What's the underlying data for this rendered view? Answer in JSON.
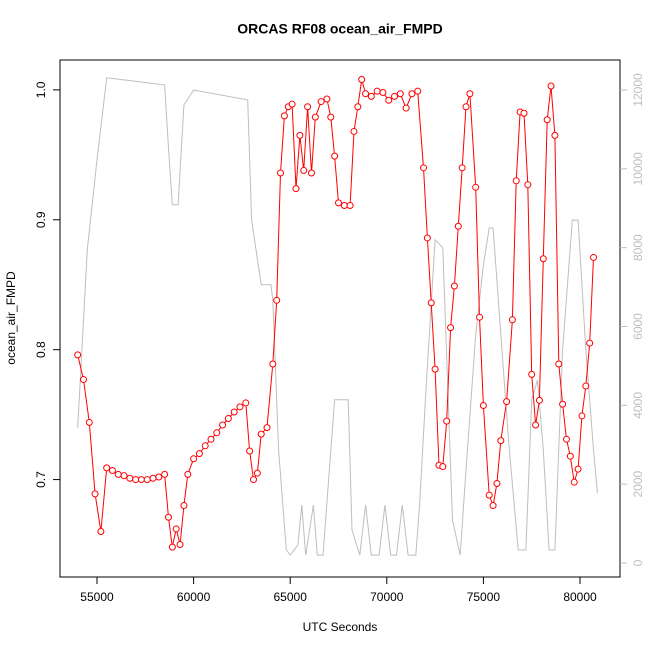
{
  "chart_data": {
    "type": "line",
    "title": "ORCAS RF08 ocean_air_FMPD",
    "x_label": "UTC Seconds",
    "y_label": "ocean_air_FMPD",
    "xlim": [
      53085,
      82070
    ],
    "xticks": [
      55000,
      60000,
      65000,
      70000,
      75000,
      80000
    ],
    "ylim": [
      0.625,
      1.023
    ],
    "yticks": [
      0.7,
      0.8,
      0.9,
      {
        "value": 1.0,
        "label": "1.0"
      }
    ],
    "y2lim": [
      -355,
      12761
    ],
    "y2ticks": [
      0,
      2000,
      4000,
      6000,
      8000,
      10000,
      12000
    ],
    "y2color": "#bebebe",
    "series": [
      {
        "color": "#bebebe",
        "axis": "y2",
        "markers": false,
        "x": [
          54000,
          54500,
          55000,
          55500,
          58500,
          58700,
          58900,
          59200,
          59500,
          60000,
          62800,
          63000,
          63500,
          64000,
          64100,
          64400,
          64800,
          65000,
          65400,
          65600,
          65800,
          66200,
          66400,
          66700,
          67300,
          68000,
          68200,
          68600,
          68900,
          69200,
          69600,
          69900,
          70200,
          70500,
          70800,
          71100,
          71500,
          71700,
          72000,
          72500,
          72900,
          73400,
          73800,
          74100,
          74600,
          75000,
          75300,
          75500,
          76300,
          76800,
          77200,
          77500,
          77800,
          78100,
          78400,
          78700,
          79100,
          79600,
          79900,
          80300,
          80700,
          80900
        ],
        "values": [
          3430,
          7950,
          10230,
          12310,
          12130,
          10530,
          9090,
          9090,
          11620,
          12000,
          11750,
          8700,
          7060,
          7060,
          6680,
          2870,
          330,
          200,
          460,
          1470,
          200,
          1470,
          200,
          200,
          4140,
          4140,
          840,
          200,
          1470,
          200,
          200,
          1470,
          200,
          200,
          1470,
          200,
          200,
          1470,
          4140,
          8200,
          8000,
          1090,
          200,
          2360,
          5790,
          7560,
          8500,
          8500,
          3120,
          330,
          330,
          4140,
          4640,
          2870,
          330,
          330,
          5410,
          8700,
          8700,
          5410,
          2870,
          1780
        ]
      },
      {
        "color": "#ff0000",
        "markers": true,
        "x": [
          54000,
          54300,
          54600,
          54900,
          55200,
          55500,
          55800,
          56100,
          56400,
          56700,
          57000,
          57300,
          57600,
          57900,
          58200,
          58500,
          58700,
          58900,
          59100,
          59300,
          59500,
          59700,
          60000,
          60300,
          60600,
          60900,
          61200,
          61500,
          61800,
          62100,
          62400,
          62700,
          62900,
          63100,
          63300,
          63500,
          63800,
          64100,
          64300,
          64500,
          64700,
          64900,
          65100,
          65300,
          65500,
          65700,
          65900,
          66100,
          66300,
          66600,
          66900,
          67100,
          67300,
          67500,
          67800,
          68100,
          68300,
          68500,
          68700,
          68900,
          69200,
          69500,
          69800,
          70100,
          70400,
          70700,
          71000,
          71300,
          71600,
          71900,
          72100,
          72300,
          72500,
          72700,
          72900,
          73100,
          73300,
          73500,
          73700,
          73900,
          74100,
          74300,
          74600,
          74800,
          75000,
          75300,
          75500,
          75700,
          75900,
          76200,
          76500,
          76700,
          76900,
          77100,
          77300,
          77500,
          77700,
          77900,
          78100,
          78300,
          78500,
          78700,
          78900,
          79100,
          79300,
          79500,
          79700,
          79900,
          80100,
          80300,
          80500,
          80700
        ],
        "values": [
          0.796,
          0.777,
          0.744,
          0.689,
          0.66,
          0.709,
          0.707,
          0.704,
          0.703,
          0.701,
          0.7,
          0.7,
          0.7,
          0.701,
          0.702,
          0.704,
          0.671,
          0.648,
          0.662,
          0.65,
          0.68,
          0.704,
          0.716,
          0.72,
          0.726,
          0.731,
          0.736,
          0.742,
          0.747,
          0.752,
          0.756,
          0.759,
          0.722,
          0.7,
          0.705,
          0.735,
          0.74,
          0.789,
          0.838,
          0.936,
          0.98,
          0.987,
          0.989,
          0.924,
          0.965,
          0.938,
          0.987,
          0.936,
          0.979,
          0.991,
          0.993,
          0.979,
          0.949,
          0.913,
          0.911,
          0.911,
          0.968,
          0.987,
          1.008,
          0.997,
          0.995,
          0.999,
          0.998,
          0.992,
          0.995,
          0.997,
          0.986,
          0.997,
          0.999,
          0.94,
          0.886,
          0.836,
          0.785,
          0.711,
          0.71,
          0.745,
          0.817,
          0.849,
          0.895,
          0.94,
          0.987,
          0.997,
          0.925,
          0.825,
          0.757,
          0.688,
          0.68,
          0.697,
          0.73,
          0.76,
          0.823,
          0.93,
          0.983,
          0.982,
          0.927,
          0.781,
          0.742,
          0.761,
          0.87,
          0.977,
          1.003,
          0.965,
          0.789,
          0.758,
          0.731,
          0.718,
          0.698,
          0.708,
          0.749,
          0.772,
          0.805,
          0.871
        ]
      }
    ]
  }
}
